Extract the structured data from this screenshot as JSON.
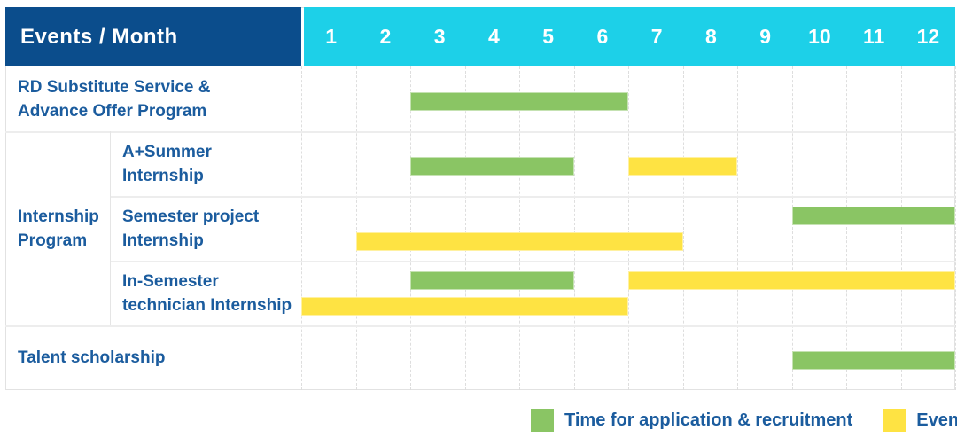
{
  "title": "Events / Month",
  "colors": {
    "header_bg": "#0b4d8c",
    "month_header_bg": "#1dd0e8",
    "application_bar": "#8ac564",
    "event_bar": "#fee343",
    "label_text": "#1b5c9e",
    "grid_line": "#e2e2e2"
  },
  "chart_data": {
    "type": "bar",
    "variant": "gantt-schedule",
    "title": "Events / Month",
    "x_axis": {
      "label": "Month",
      "ticks": [
        "1",
        "2",
        "3",
        "4",
        "5",
        "6",
        "7",
        "8",
        "9",
        "10",
        "11",
        "12"
      ],
      "range": [
        1,
        12
      ],
      "grid": true
    },
    "legend": [
      {
        "name": "Time for application & recruitment",
        "series_key": "application",
        "color": "#8ac564"
      },
      {
        "name": "Events",
        "series_key": "event",
        "color": "#fee343"
      }
    ],
    "legend_position": "bottom-right",
    "group_label": "Internship Program",
    "group_label_lines": [
      "Internship",
      "Program"
    ],
    "group_row_indices": [
      1,
      2,
      3
    ],
    "rows": [
      {
        "label": "RD Substitute Service & Advance Offer Program",
        "label_lines": [
          "RD Substitute Service &",
          "Advance Offer Program"
        ],
        "in_group": false,
        "bars": [
          {
            "series": "application",
            "start_month": 3,
            "end_month": 6,
            "lane": "single"
          }
        ]
      },
      {
        "label": "A+Summer Internship",
        "label_lines": [
          "A+Summer",
          "Internship"
        ],
        "in_group": true,
        "bars": [
          {
            "series": "application",
            "start_month": 3,
            "end_month": 5,
            "lane": "single"
          },
          {
            "series": "event",
            "start_month": 7,
            "end_month": 8,
            "lane": "single"
          }
        ]
      },
      {
        "label": "Semester project Internship",
        "label_lines": [
          "Semester project",
          "Internship"
        ],
        "in_group": true,
        "bars": [
          {
            "series": "application",
            "start_month": 10,
            "end_month": 12,
            "lane": "top"
          },
          {
            "series": "event",
            "start_month": 2,
            "end_month": 7,
            "lane": "bottom"
          }
        ]
      },
      {
        "label": "In-Semester technician Internship",
        "label_lines": [
          "In-Semester",
          "technician Internship"
        ],
        "in_group": true,
        "bars": [
          {
            "series": "application",
            "start_month": 3,
            "end_month": 5,
            "lane": "top"
          },
          {
            "series": "event",
            "start_month": 7,
            "end_month": 12,
            "lane": "top"
          },
          {
            "series": "event",
            "start_month": 1,
            "end_month": 6,
            "lane": "bottom"
          }
        ]
      },
      {
        "label": "Talent scholarship",
        "label_lines": [
          "Talent scholarship"
        ],
        "in_group": false,
        "bars": [
          {
            "series": "application",
            "start_month": 10,
            "end_month": 12,
            "lane": "single"
          }
        ]
      }
    ]
  }
}
